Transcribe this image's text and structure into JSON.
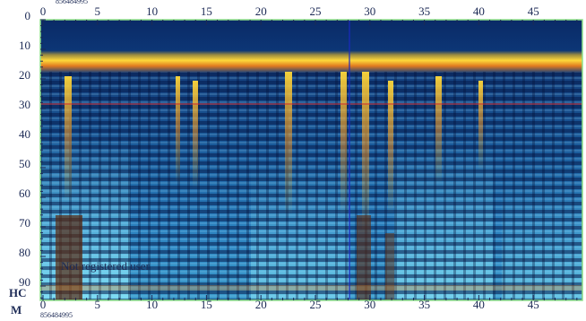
{
  "header": {
    "id": "856484995"
  },
  "top_axis": {
    "ticks": [
      0,
      5,
      10,
      15,
      20,
      25,
      30,
      35,
      40,
      45
    ]
  },
  "left_axis": {
    "ticks": [
      0,
      10,
      20,
      30,
      40,
      50,
      60,
      70,
      80,
      90
    ],
    "unit": "HC"
  },
  "bottom_axis": {
    "ticks": [
      0,
      5,
      10,
      15,
      20,
      25,
      30,
      35,
      40,
      45
    ],
    "unit": "M",
    "id": "856484995"
  },
  "watermark": "Not registered user"
}
